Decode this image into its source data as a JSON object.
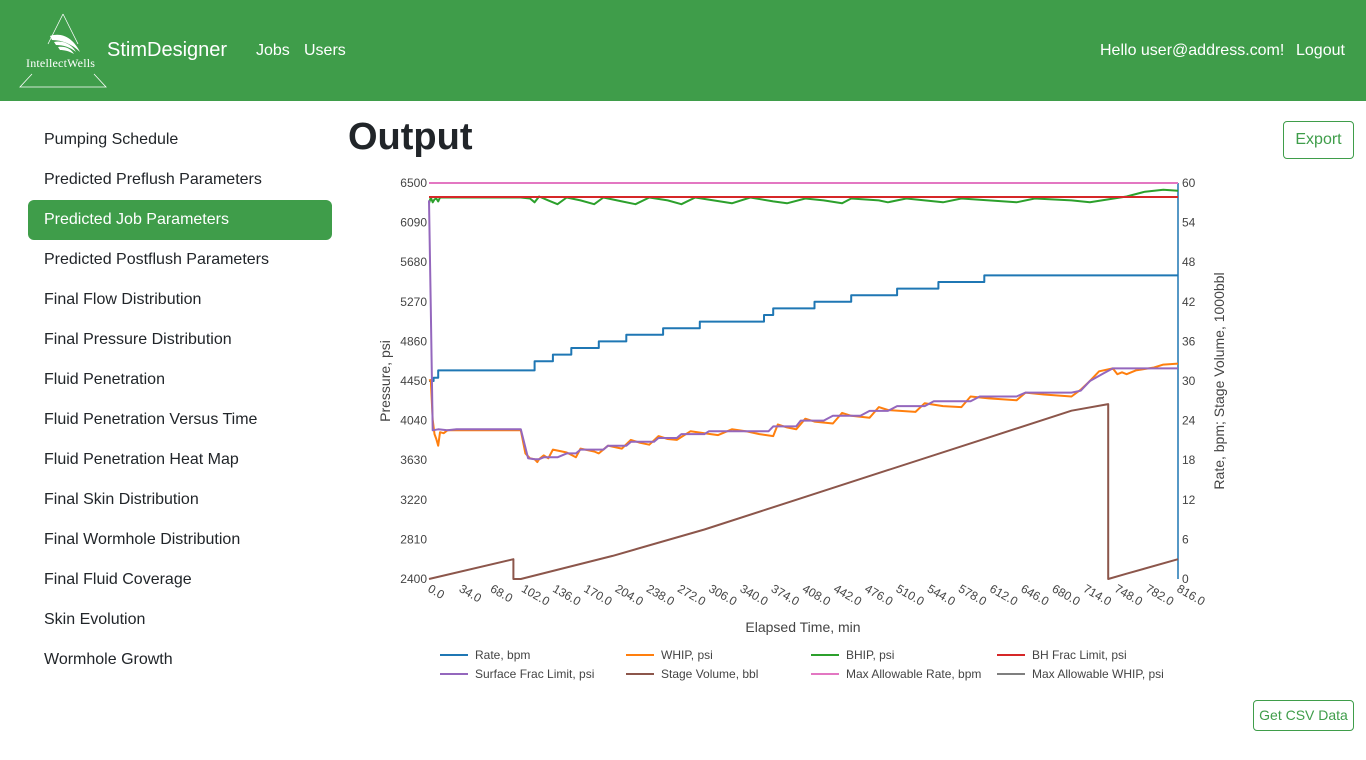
{
  "header": {
    "logo_text": "IntellectWells",
    "brand": "StimDesigner",
    "nav": [
      "Jobs",
      "Users"
    ],
    "greeting": "Hello user@address.com!",
    "logout": "Logout",
    "colors": {
      "brand_green": "#3f9d4a"
    }
  },
  "sidebar": {
    "items": [
      {
        "label": "Pumping Schedule",
        "active": false
      },
      {
        "label": "Predicted Preflush Parameters",
        "active": false
      },
      {
        "label": "Predicted Job Parameters",
        "active": true
      },
      {
        "label": "Predicted Postflush Parameters",
        "active": false
      },
      {
        "label": "Final Flow Distribution",
        "active": false
      },
      {
        "label": "Final Pressure Distribution",
        "active": false
      },
      {
        "label": "Fluid Penetration",
        "active": false
      },
      {
        "label": "Fluid Penetration Versus Time",
        "active": false
      },
      {
        "label": "Fluid Penetration Heat Map",
        "active": false
      },
      {
        "label": "Final Skin Distribution",
        "active": false
      },
      {
        "label": "Final Wormhole Distribution",
        "active": false
      },
      {
        "label": "Final Fluid Coverage",
        "active": false
      },
      {
        "label": "Skin Evolution",
        "active": false
      },
      {
        "label": "Wormhole Growth",
        "active": false
      }
    ]
  },
  "main": {
    "title": "Output",
    "export_label": "Export",
    "csv_label": "Get CSV Data"
  },
  "chart_data": {
    "type": "line",
    "xlabel": "Elapsed Time, min",
    "ylabel_left": "Pressure, psi",
    "ylabel_right": "Rate, bpm; Stage Volume, 1000bbl",
    "xlim": [
      0,
      816
    ],
    "ylim_left": [
      2400,
      6500
    ],
    "ylim_right": [
      0,
      60
    ],
    "x_ticks": [
      "0.0",
      "34.0",
      "68.0",
      "102.0",
      "136.0",
      "170.0",
      "204.0",
      "238.0",
      "272.0",
      "306.0",
      "340.0",
      "374.0",
      "408.0",
      "442.0",
      "476.0",
      "510.0",
      "544.0",
      "578.0",
      "612.0",
      "646.0",
      "680.0",
      "714.0",
      "748.0",
      "782.0",
      "816.0"
    ],
    "y_ticks_left": [
      "2400",
      "2810",
      "3220",
      "3630",
      "4040",
      "4450",
      "4860",
      "5270",
      "5680",
      "6090",
      "6500"
    ],
    "y_ticks_right": [
      "0",
      "6",
      "12",
      "18",
      "24",
      "30",
      "36",
      "42",
      "48",
      "54",
      "60"
    ],
    "legend_position": "bottom",
    "grid": false,
    "series": [
      {
        "name": "Rate, bpm",
        "axis": "right",
        "color": "#1f77b4",
        "points": [
          [
            0,
            30
          ],
          [
            5,
            30
          ],
          [
            5,
            30.5
          ],
          [
            10,
            30.5
          ],
          [
            10,
            31.6
          ],
          [
            115,
            31.6
          ],
          [
            115,
            33
          ],
          [
            135,
            33
          ],
          [
            135,
            34
          ],
          [
            155,
            34
          ],
          [
            155,
            35
          ],
          [
            185,
            35
          ],
          [
            185,
            36
          ],
          [
            215,
            36
          ],
          [
            215,
            37
          ],
          [
            255,
            37
          ],
          [
            255,
            38
          ],
          [
            295,
            38
          ],
          [
            295,
            39
          ],
          [
            365,
            39
          ],
          [
            365,
            40
          ],
          [
            375,
            40
          ],
          [
            375,
            41
          ],
          [
            420,
            41
          ],
          [
            420,
            42
          ],
          [
            460,
            42
          ],
          [
            460,
            43
          ],
          [
            510,
            43
          ],
          [
            510,
            44
          ],
          [
            555,
            44
          ],
          [
            555,
            45
          ],
          [
            605,
            45
          ],
          [
            605,
            46
          ],
          [
            816,
            46
          ]
        ]
      },
      {
        "name": "WHIP, psi",
        "axis": "left",
        "color": "#ff7f0e",
        "points": [
          [
            0,
            4455
          ],
          [
            2,
            4460
          ],
          [
            4,
            4050
          ],
          [
            6,
            3900
          ],
          [
            8,
            3850
          ],
          [
            10,
            3780
          ],
          [
            12,
            3920
          ],
          [
            16,
            3910
          ],
          [
            20,
            3940
          ],
          [
            90,
            3940
          ],
          [
            100,
            3940
          ],
          [
            105,
            3700
          ],
          [
            110,
            3650
          ],
          [
            115,
            3640
          ],
          [
            118,
            3610
          ],
          [
            120,
            3640
          ],
          [
            125,
            3680
          ],
          [
            130,
            3650
          ],
          [
            135,
            3740
          ],
          [
            145,
            3720
          ],
          [
            150,
            3710
          ],
          [
            160,
            3660
          ],
          [
            165,
            3750
          ],
          [
            180,
            3720
          ],
          [
            185,
            3700
          ],
          [
            195,
            3780
          ],
          [
            205,
            3760
          ],
          [
            210,
            3750
          ],
          [
            220,
            3840
          ],
          [
            230,
            3810
          ],
          [
            240,
            3790
          ],
          [
            250,
            3880
          ],
          [
            260,
            3850
          ],
          [
            270,
            3840
          ],
          [
            285,
            3930
          ],
          [
            300,
            3910
          ],
          [
            315,
            3890
          ],
          [
            330,
            3950
          ],
          [
            345,
            3930
          ],
          [
            360,
            3900
          ],
          [
            375,
            3880
          ],
          [
            380,
            4000
          ],
          [
            390,
            3970
          ],
          [
            400,
            3950
          ],
          [
            410,
            4060
          ],
          [
            420,
            4030
          ],
          [
            440,
            4010
          ],
          [
            450,
            4120
          ],
          [
            460,
            4090
          ],
          [
            480,
            4070
          ],
          [
            490,
            4180
          ],
          [
            500,
            4150
          ],
          [
            530,
            4130
          ],
          [
            540,
            4220
          ],
          [
            560,
            4190
          ],
          [
            580,
            4180
          ],
          [
            590,
            4290
          ],
          [
            610,
            4270
          ],
          [
            640,
            4250
          ],
          [
            650,
            4330
          ],
          [
            670,
            4310
          ],
          [
            700,
            4290
          ],
          [
            710,
            4360
          ],
          [
            720,
            4450
          ],
          [
            730,
            4550
          ],
          [
            740,
            4570
          ],
          [
            745,
            4580
          ],
          [
            750,
            4520
          ],
          [
            755,
            4540
          ],
          [
            760,
            4520
          ],
          [
            770,
            4560
          ],
          [
            790,
            4590
          ],
          [
            800,
            4620
          ],
          [
            816,
            4630
          ]
        ]
      },
      {
        "name": "BHIP, psi",
        "axis": "left",
        "color": "#2ca02c",
        "points": [
          [
            0,
            6290
          ],
          [
            2,
            6350
          ],
          [
            4,
            6300
          ],
          [
            6,
            6330
          ],
          [
            8,
            6340
          ],
          [
            10,
            6310
          ],
          [
            12,
            6350
          ],
          [
            90,
            6350
          ],
          [
            100,
            6350
          ],
          [
            110,
            6340
          ],
          [
            115,
            6300
          ],
          [
            120,
            6360
          ],
          [
            130,
            6320
          ],
          [
            140,
            6280
          ],
          [
            150,
            6350
          ],
          [
            165,
            6320
          ],
          [
            180,
            6280
          ],
          [
            190,
            6350
          ],
          [
            210,
            6310
          ],
          [
            225,
            6280
          ],
          [
            240,
            6350
          ],
          [
            260,
            6320
          ],
          [
            275,
            6280
          ],
          [
            290,
            6350
          ],
          [
            310,
            6320
          ],
          [
            330,
            6290
          ],
          [
            350,
            6350
          ],
          [
            375,
            6310
          ],
          [
            390,
            6290
          ],
          [
            410,
            6340
          ],
          [
            430,
            6320
          ],
          [
            450,
            6290
          ],
          [
            460,
            6340
          ],
          [
            490,
            6320
          ],
          [
            500,
            6300
          ],
          [
            520,
            6340
          ],
          [
            540,
            6320
          ],
          [
            560,
            6300
          ],
          [
            580,
            6340
          ],
          [
            610,
            6320
          ],
          [
            640,
            6300
          ],
          [
            660,
            6340
          ],
          [
            700,
            6320
          ],
          [
            720,
            6300
          ],
          [
            740,
            6330
          ],
          [
            760,
            6360
          ],
          [
            780,
            6410
          ],
          [
            800,
            6430
          ],
          [
            816,
            6420
          ]
        ]
      },
      {
        "name": "BH Frac Limit, psi",
        "axis": "left",
        "color": "#d62728",
        "points": [
          [
            0,
            6355
          ],
          [
            816,
            6355
          ]
        ]
      },
      {
        "name": "Surface Frac Limit, psi",
        "axis": "left",
        "color": "#9467bd",
        "points": [
          [
            0,
            6320
          ],
          [
            2,
            5200
          ],
          [
            4,
            3940
          ],
          [
            10,
            3950
          ],
          [
            20,
            3940
          ],
          [
            30,
            3950
          ],
          [
            90,
            3950
          ],
          [
            100,
            3950
          ],
          [
            108,
            3650
          ],
          [
            115,
            3640
          ],
          [
            120,
            3640
          ],
          [
            125,
            3660
          ],
          [
            140,
            3660
          ],
          [
            150,
            3700
          ],
          [
            160,
            3700
          ],
          [
            165,
            3740
          ],
          [
            190,
            3740
          ],
          [
            195,
            3780
          ],
          [
            215,
            3780
          ],
          [
            220,
            3820
          ],
          [
            245,
            3820
          ],
          [
            250,
            3860
          ],
          [
            270,
            3860
          ],
          [
            275,
            3900
          ],
          [
            300,
            3900
          ],
          [
            305,
            3930
          ],
          [
            370,
            3930
          ],
          [
            375,
            3980
          ],
          [
            400,
            3980
          ],
          [
            405,
            4040
          ],
          [
            430,
            4040
          ],
          [
            440,
            4090
          ],
          [
            470,
            4090
          ],
          [
            480,
            4140
          ],
          [
            500,
            4140
          ],
          [
            510,
            4190
          ],
          [
            540,
            4190
          ],
          [
            550,
            4240
          ],
          [
            590,
            4240
          ],
          [
            600,
            4290
          ],
          [
            640,
            4290
          ],
          [
            650,
            4330
          ],
          [
            700,
            4330
          ],
          [
            710,
            4350
          ],
          [
            720,
            4450
          ],
          [
            735,
            4530
          ],
          [
            745,
            4580
          ],
          [
            816,
            4580
          ]
        ]
      },
      {
        "name": "Stage Volume, bbl",
        "axis": "right",
        "color": "#8c564b",
        "points": [
          [
            0,
            0
          ],
          [
            92,
            3
          ],
          [
            92,
            0
          ],
          [
            100,
            0
          ],
          [
            200,
            3.5
          ],
          [
            300,
            7.5
          ],
          [
            400,
            12
          ],
          [
            500,
            16.5
          ],
          [
            600,
            21
          ],
          [
            700,
            25.5
          ],
          [
            740,
            26.5
          ],
          [
            740,
            0
          ],
          [
            760,
            0.8
          ],
          [
            816,
            3
          ]
        ]
      },
      {
        "name": "Max Allowable Rate, bpm",
        "axis": "right",
        "color": "#e377c2",
        "points": [
          [
            0,
            60
          ],
          [
            816,
            60
          ]
        ]
      },
      {
        "name": "Max Allowable WHIP, psi",
        "axis": "left",
        "color": "#7f7f7f",
        "points": []
      }
    ]
  }
}
